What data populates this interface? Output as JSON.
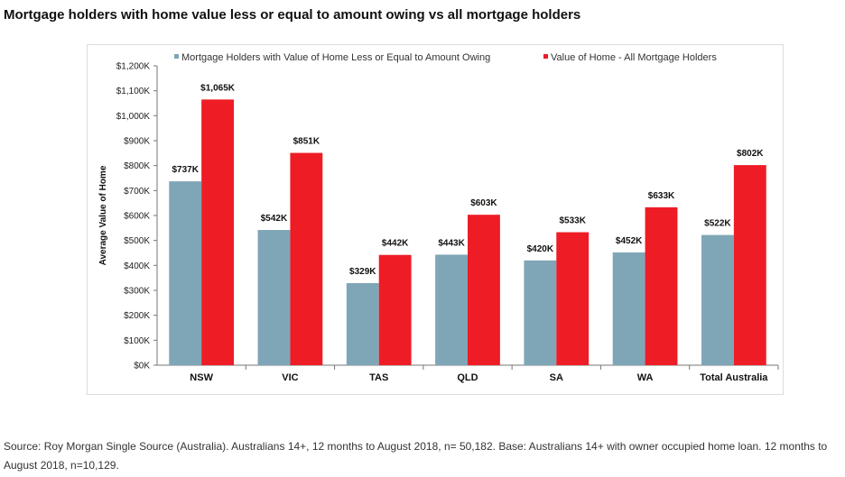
{
  "page": {
    "title": "Mortgage holders with home value less or equal to amount owing vs all mortgage holders",
    "source": "Source: Roy Morgan Single Source (Australia). Australians 14+, 12 months to August 2018, n= 50,182. Base: Australians 14+ with owner occupied home loan. 12 months to August 2018, n=10,129."
  },
  "colors": {
    "series1": "#7fa6b7",
    "series2": "#ee1c25"
  },
  "chart_data": {
    "type": "bar",
    "title": "",
    "xlabel": "",
    "ylabel": "Average Value of Home",
    "ylim": [
      0,
      1200
    ],
    "yticks": [
      0,
      100,
      200,
      300,
      400,
      500,
      600,
      700,
      800,
      900,
      1000,
      1100,
      1200
    ],
    "ytick_labels": [
      "$0K",
      "$100K",
      "$200K",
      "$300K",
      "$400K",
      "$500K",
      "$600K",
      "$700K",
      "$800K",
      "$900K",
      "$1,000K",
      "$1,100K",
      "$1,200K"
    ],
    "categories": [
      "NSW",
      "VIC",
      "TAS",
      "QLD",
      "SA",
      "WA",
      "Total Australia"
    ],
    "legend_position": "top",
    "series": [
      {
        "name": "Mortgage Holders with Value of Home Less or Equal to Amount Owing",
        "values": [
          737,
          542,
          329,
          443,
          420,
          452,
          522
        ],
        "labels": [
          "$737K",
          "$542K",
          "$329K",
          "$443K",
          "$420K",
          "$452K",
          "$522K"
        ]
      },
      {
        "name": "Value of Home - All Mortgage Holders",
        "values": [
          1065,
          851,
          442,
          603,
          533,
          633,
          802
        ],
        "labels": [
          "$1,065K",
          "$851K",
          "$442K",
          "$603K",
          "$533K",
          "$633K",
          "$802K"
        ]
      }
    ]
  }
}
